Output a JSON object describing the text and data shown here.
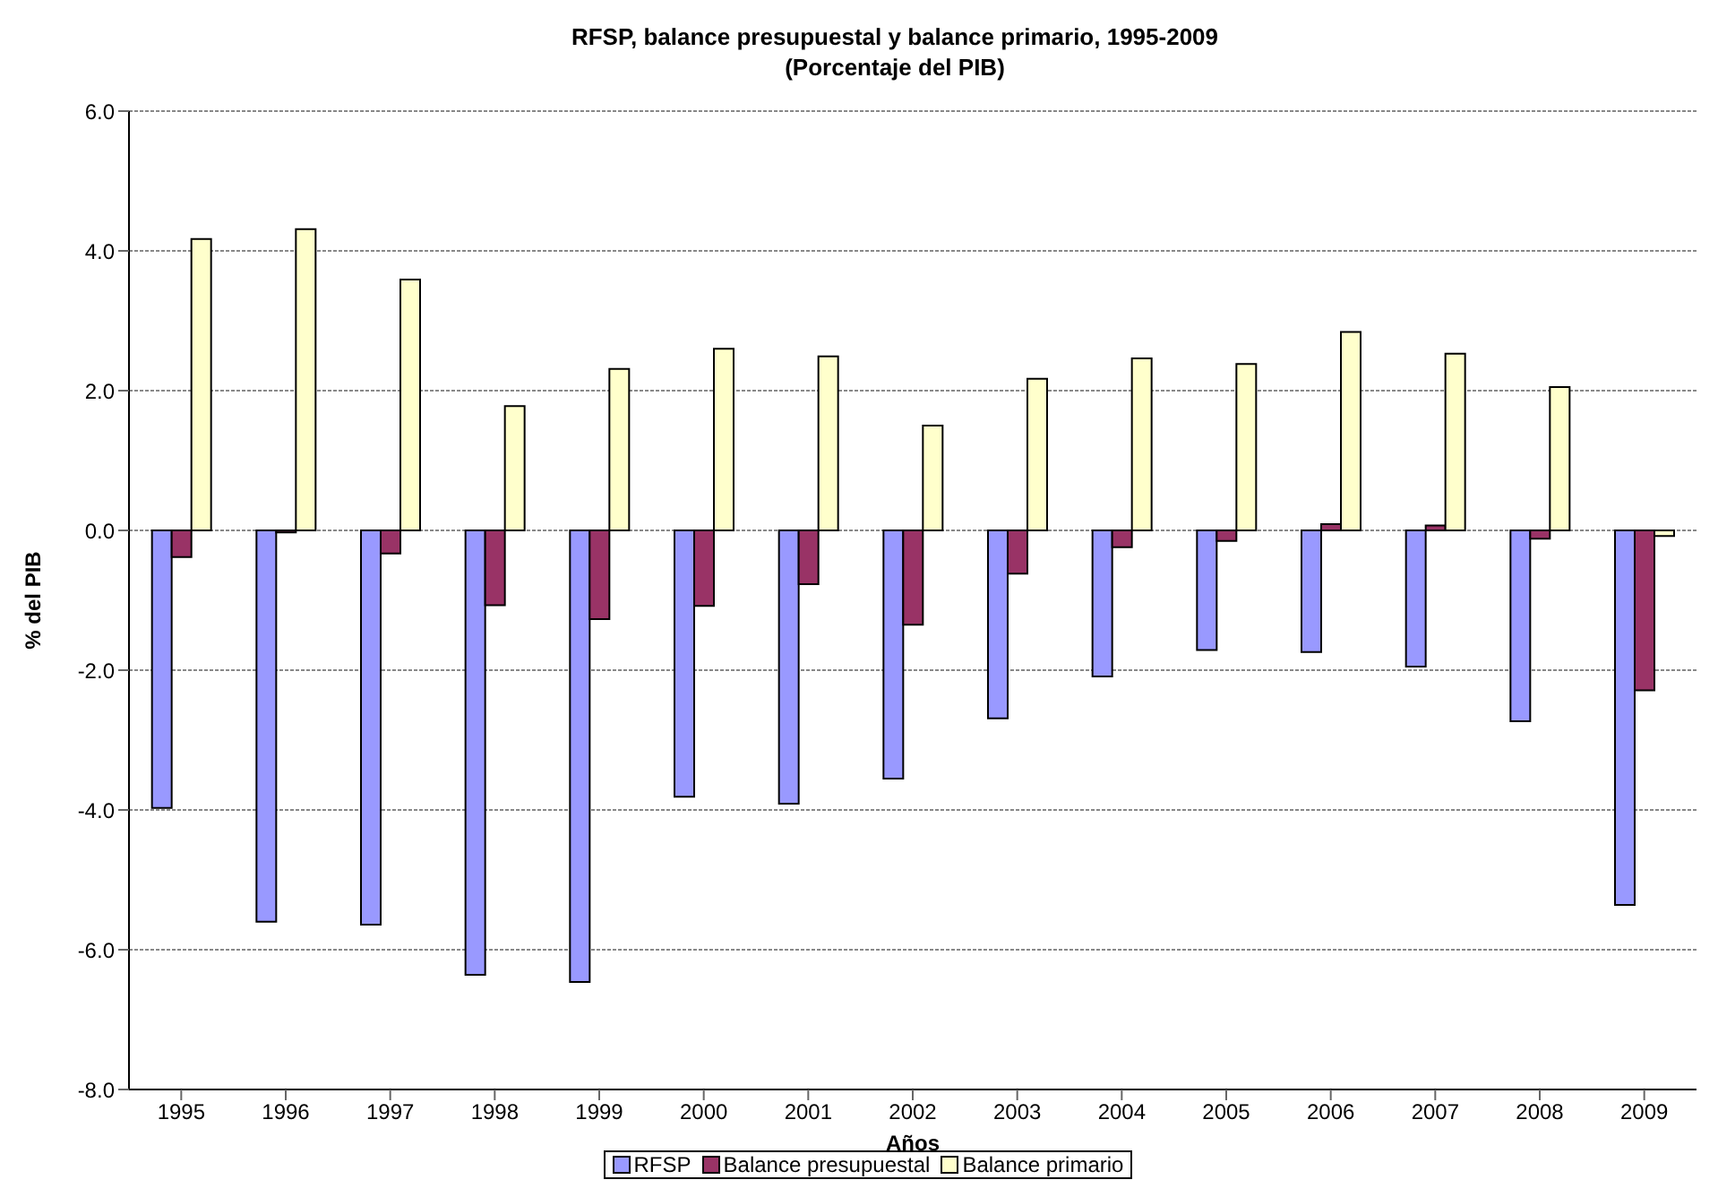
{
  "chart_data": {
    "type": "bar",
    "title": "RFSP, balance presupuestal y balance primario, 1995-2009",
    "subtitle": "(Porcentaje del PIB)",
    "xlabel": "Años",
    "ylabel": "% del PIB",
    "categories": [
      "1995",
      "1996",
      "1997",
      "1998",
      "1999",
      "2000",
      "2001",
      "2002",
      "2003",
      "2004",
      "2005",
      "2006",
      "2007",
      "2008",
      "2009"
    ],
    "series": [
      {
        "name": "RFSP",
        "color": "#9999ff",
        "values": [
          -3.97,
          -5.6,
          -5.64,
          -6.36,
          -6.46,
          -3.81,
          -3.91,
          -3.55,
          -2.69,
          -2.09,
          -1.71,
          -1.74,
          -1.95,
          -2.73,
          -5.36
        ]
      },
      {
        "name": "Balance presupuestal",
        "color": "#993366",
        "values": [
          -0.38,
          -0.03,
          -0.33,
          -1.07,
          -1.27,
          -1.08,
          -0.77,
          -1.35,
          -0.62,
          -0.24,
          -0.15,
          0.09,
          0.07,
          -0.12,
          -2.29
        ]
      },
      {
        "name": "Balance primario",
        "color": "#ffffcc",
        "values": [
          4.17,
          4.31,
          3.59,
          1.78,
          2.31,
          2.6,
          2.49,
          1.5,
          2.17,
          2.46,
          2.38,
          2.84,
          2.53,
          2.05,
          -0.08
        ]
      }
    ],
    "ylim": [
      -8,
      6
    ],
    "yticks": [
      {
        "value": -8,
        "label": "-8.0"
      },
      {
        "value": -6,
        "label": "-6.0"
      },
      {
        "value": -4,
        "label": "-4.0"
      },
      {
        "value": -2,
        "label": "-2.0"
      },
      {
        "value": 0,
        "label": "0.0"
      },
      {
        "value": 2,
        "label": "2.0"
      },
      {
        "value": 4,
        "label": "4.0"
      },
      {
        "value": 6,
        "label": "6.0"
      }
    ],
    "grid": "y",
    "legend": "bottom"
  }
}
